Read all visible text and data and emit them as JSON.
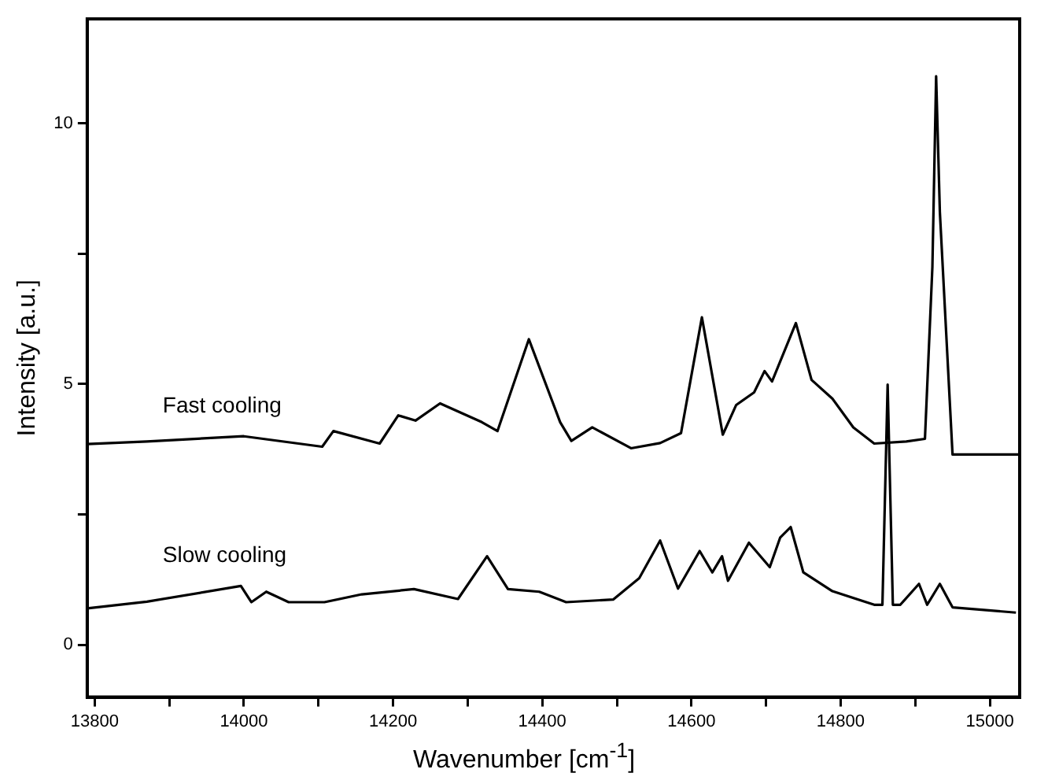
{
  "chart_data": {
    "type": "line",
    "xlabel": "Wavenumber [cm$^{-1}$]",
    "ylabel": "Intensity [a.u.]",
    "xlim": [
      13790,
      15040
    ],
    "ylim": [
      -1,
      12
    ],
    "xticks": [
      13800,
      {
        "value": 13900,
        "label": null
      },
      14000,
      {
        "value": 14100,
        "label": null
      },
      14200,
      {
        "value": 14300,
        "label": null
      },
      14400,
      {
        "value": 14500,
        "label": null
      },
      14600,
      {
        "value": 14700,
        "label": null
      },
      14800,
      {
        "value": 14900,
        "label": null
      },
      15000
    ],
    "yticks": [
      0,
      {
        "value": 2.5,
        "label": null
      },
      5,
      {
        "value": 7.5,
        "label": null
      },
      10
    ],
    "grid": false,
    "legend": false,
    "marker": "none",
    "line_style": "solid",
    "series": [
      {
        "name": "Fast cooling",
        "color": "#000000",
        "x": [
          13790,
          13870,
          14000,
          14105,
          14120,
          14182,
          14207,
          14230,
          14263,
          14319,
          14340,
          14382,
          14424,
          14439,
          14467,
          14519,
          14558,
          14586,
          14614,
          14642,
          14660,
          14684,
          14698,
          14708,
          14740,
          14761,
          14789,
          14817,
          14845,
          14888,
          14913,
          14923,
          14928,
          14933,
          14950,
          15038
        ],
        "values": [
          3.85,
          3.9,
          4.0,
          3.8,
          4.1,
          3.86,
          4.4,
          4.3,
          4.63,
          4.27,
          4.1,
          5.86,
          4.27,
          3.91,
          4.17,
          3.77,
          3.87,
          4.06,
          6.28,
          4.03,
          4.6,
          4.84,
          5.25,
          5.05,
          6.17,
          5.08,
          4.72,
          4.17,
          3.86,
          3.9,
          3.95,
          7.25,
          10.9,
          8.3,
          3.65,
          3.65
        ]
      },
      {
        "name": "Slow cooling",
        "color": "#000000",
        "x": [
          13790,
          13870,
          13996,
          14010,
          14030,
          14060,
          14108,
          14158,
          14228,
          14287,
          14326,
          14354,
          14396,
          14432,
          14495,
          14530,
          14558,
          14582,
          14611,
          14628,
          14641,
          14649,
          14677,
          14705,
          14719,
          14733,
          14750,
          14789,
          14845,
          14856,
          14863,
          14870,
          14880,
          14905,
          14916,
          14933,
          14950,
          15035
        ],
        "values": [
          0.7,
          0.83,
          1.13,
          0.82,
          1.02,
          0.82,
          0.82,
          0.97,
          1.07,
          0.88,
          1.7,
          1.07,
          1.02,
          0.82,
          0.87,
          1.28,
          2.0,
          1.08,
          1.8,
          1.39,
          1.7,
          1.23,
          1.96,
          1.49,
          2.06,
          2.26,
          1.39,
          1.03,
          0.77,
          0.77,
          4.99,
          0.77,
          0.77,
          1.17,
          0.77,
          1.17,
          0.72,
          0.62
        ]
      }
    ]
  }
}
